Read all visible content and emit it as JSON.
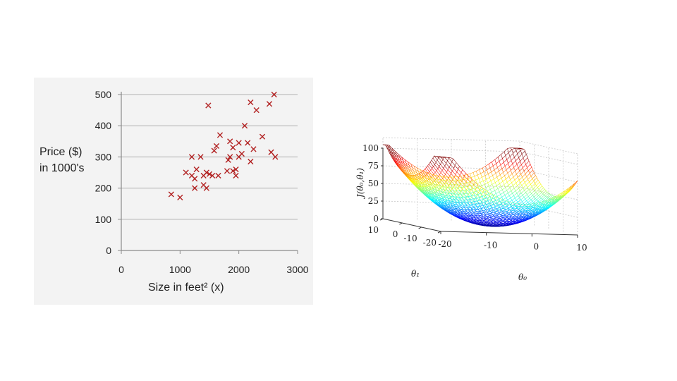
{
  "chart_data": [
    {
      "type": "scatter",
      "title": "",
      "ylabel_lines": [
        "Price ($)",
        "in 1000's"
      ],
      "xlabel": "Size in feet² (x)",
      "xlim": [
        0,
        3000
      ],
      "ylim": [
        0,
        500
      ],
      "xticks": [
        "0",
        "1000",
        "2000",
        "3000"
      ],
      "yticks": [
        "0",
        "100",
        "200",
        "300",
        "400",
        "500"
      ],
      "grid": true,
      "marker": "x",
      "color": "#b22222",
      "points": [
        [
          850,
          180
        ],
        [
          1000,
          170
        ],
        [
          1100,
          250
        ],
        [
          1200,
          300
        ],
        [
          1200,
          240
        ],
        [
          1250,
          230
        ],
        [
          1250,
          200
        ],
        [
          1280,
          260
        ],
        [
          1350,
          300
        ],
        [
          1400,
          210
        ],
        [
          1400,
          240
        ],
        [
          1450,
          200
        ],
        [
          1450,
          250
        ],
        [
          1500,
          245
        ],
        [
          1480,
          465
        ],
        [
          1550,
          240
        ],
        [
          1580,
          320
        ],
        [
          1620,
          335
        ],
        [
          1650,
          240
        ],
        [
          1680,
          370
        ],
        [
          1800,
          255
        ],
        [
          1820,
          290
        ],
        [
          1850,
          350
        ],
        [
          1850,
          300
        ],
        [
          1900,
          330
        ],
        [
          1900,
          255
        ],
        [
          1950,
          240
        ],
        [
          1950,
          260
        ],
        [
          2000,
          345
        ],
        [
          2000,
          300
        ],
        [
          2050,
          310
        ],
        [
          2100,
          400
        ],
        [
          2150,
          345
        ],
        [
          2200,
          285
        ],
        [
          2200,
          475
        ],
        [
          2250,
          325
        ],
        [
          2300,
          450
        ],
        [
          2400,
          365
        ],
        [
          2520,
          470
        ],
        [
          2550,
          315
        ],
        [
          2600,
          500
        ],
        [
          2620,
          300
        ]
      ]
    },
    {
      "type": "surface",
      "zlabel": "J(θ₀,θ₁)",
      "xlabel": "θ₀",
      "ylabel": "θ₁",
      "zticks": [
        "0",
        "25",
        "50",
        "75",
        "100"
      ],
      "xticks": [
        "-20",
        "-10",
        "0",
        "10"
      ],
      "yticks": [
        "-20",
        "-10",
        "0",
        "10"
      ],
      "zlim": [
        0,
        100
      ],
      "colormap": "jet"
    }
  ]
}
